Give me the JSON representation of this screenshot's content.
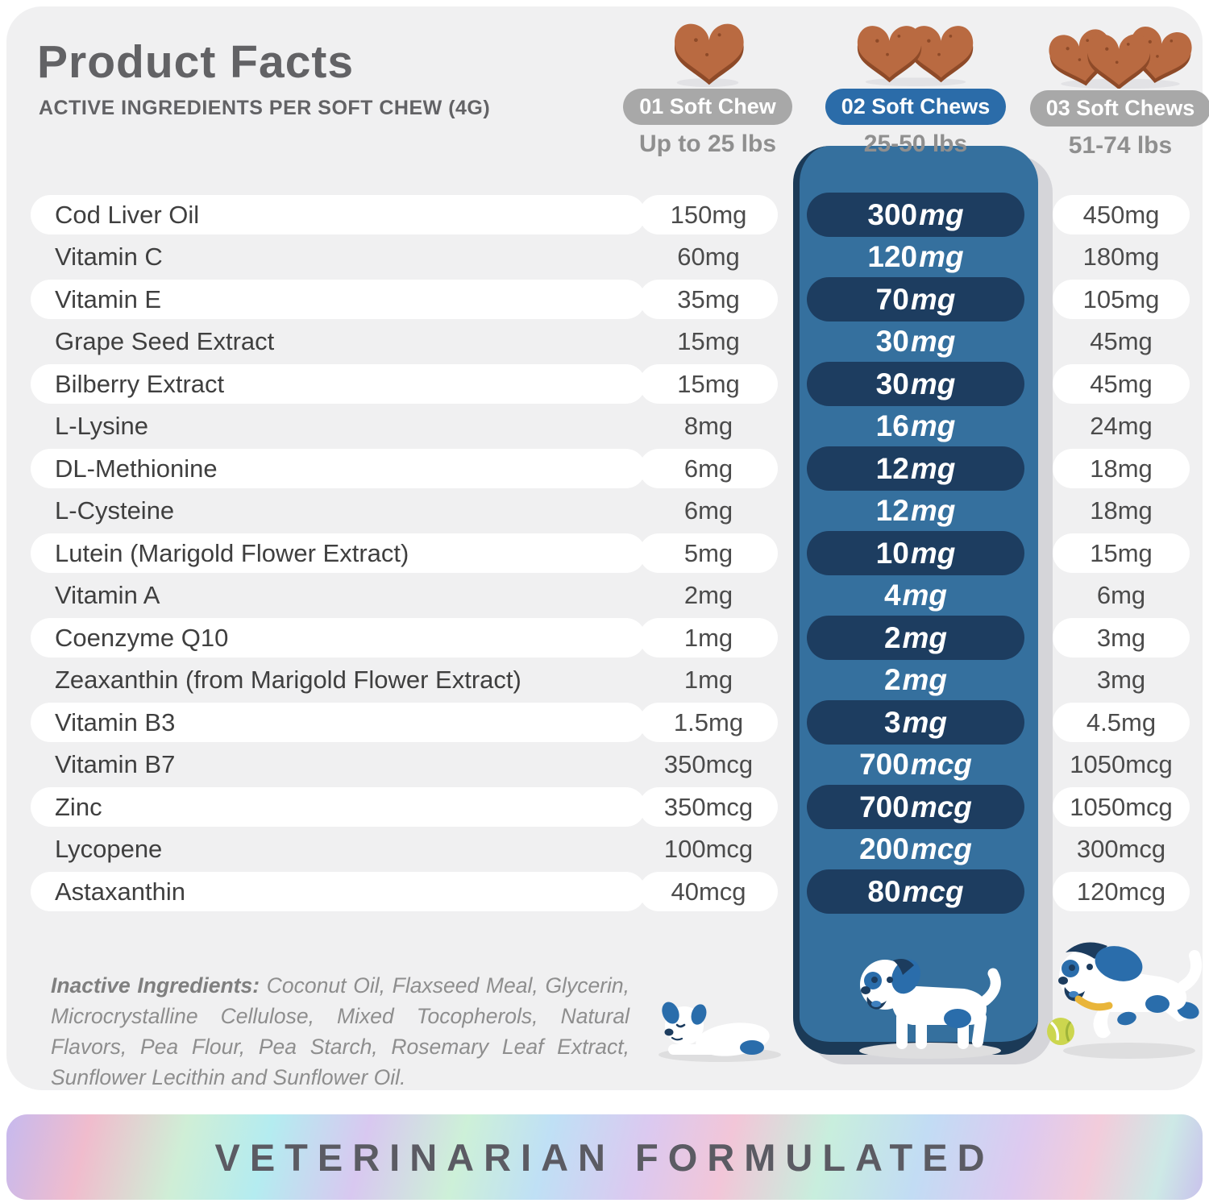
{
  "header": {
    "title": "Product Facts",
    "subtitle": "ACTIVE INGREDIENTS PER SOFT CHEW (4G)"
  },
  "dose_columns": [
    {
      "pill": "01 Soft Chew",
      "weight": "Up to 25 lbs",
      "chew_count": 1,
      "highlighted": false
    },
    {
      "pill": "02 Soft Chews",
      "weight": "25-50 lbs",
      "chew_count": 2,
      "highlighted": true
    },
    {
      "pill": "03 Soft Chews",
      "weight": "51-74 lbs",
      "chew_count": 3,
      "highlighted": false
    }
  ],
  "table": {
    "rows": [
      {
        "name": "Cod Liver Oil",
        "dose_1": "150mg",
        "dose_2_value": "300",
        "dose_2_unit": "mg",
        "dose_3": "450mg"
      },
      {
        "name": "Vitamin C",
        "dose_1": "60mg",
        "dose_2_value": "120",
        "dose_2_unit": "mg",
        "dose_3": "180mg"
      },
      {
        "name": "Vitamin E",
        "dose_1": "35mg",
        "dose_2_value": "70",
        "dose_2_unit": "mg",
        "dose_3": "105mg"
      },
      {
        "name": "Grape Seed Extract",
        "dose_1": "15mg",
        "dose_2_value": "30",
        "dose_2_unit": "mg",
        "dose_3": "45mg"
      },
      {
        "name": "Bilberry Extract",
        "dose_1": "15mg",
        "dose_2_value": "30",
        "dose_2_unit": "mg",
        "dose_3": "45mg"
      },
      {
        "name": "L-Lysine",
        "dose_1": "8mg",
        "dose_2_value": "16",
        "dose_2_unit": "mg",
        "dose_3": "24mg"
      },
      {
        "name": "DL-Methionine",
        "dose_1": "6mg",
        "dose_2_value": "12",
        "dose_2_unit": "mg",
        "dose_3": "18mg"
      },
      {
        "name": "L-Cysteine",
        "dose_1": "6mg",
        "dose_2_value": "12",
        "dose_2_unit": "mg",
        "dose_3": "18mg"
      },
      {
        "name": "Lutein (Marigold Flower Extract)",
        "dose_1": "5mg",
        "dose_2_value": "10",
        "dose_2_unit": "mg",
        "dose_3": "15mg"
      },
      {
        "name": "Vitamin A",
        "dose_1": "2mg",
        "dose_2_value": "4",
        "dose_2_unit": "mg",
        "dose_3": "6mg"
      },
      {
        "name": "Coenzyme Q10",
        "dose_1": "1mg",
        "dose_2_value": "2",
        "dose_2_unit": "mg",
        "dose_3": "3mg"
      },
      {
        "name": "Zeaxanthin (from Marigold Flower Extract)",
        "dose_1": "1mg",
        "dose_2_value": "2",
        "dose_2_unit": "mg",
        "dose_3": "3mg"
      },
      {
        "name": "Vitamin B3",
        "dose_1": "1.5mg",
        "dose_2_value": "3",
        "dose_2_unit": "mg",
        "dose_3": "4.5mg"
      },
      {
        "name": "Vitamin B7",
        "dose_1": "350mcg",
        "dose_2_value": "700",
        "dose_2_unit": "mcg",
        "dose_3": "1050mcg"
      },
      {
        "name": "Zinc",
        "dose_1": "350mcg",
        "dose_2_value": "700",
        "dose_2_unit": "mcg",
        "dose_3": "1050mcg"
      },
      {
        "name": "Lycopene",
        "dose_1": "100mcg",
        "dose_2_value": "200",
        "dose_2_unit": "mcg",
        "dose_3": "300mcg"
      },
      {
        "name": "Astaxanthin",
        "dose_1": "40mcg",
        "dose_2_value": "80",
        "dose_2_unit": "mcg",
        "dose_3": "120mcg"
      }
    ]
  },
  "inactive": {
    "label": "Inactive Ingredients:",
    "text": " Coconut Oil, Flaxseed Meal, Glycerin, Microcrystalline Cellulose, Mixed Tocopherols, Natural Flavors, Pea Flour, Pea Starch, Rosemary Leaf Extract, Sunflower Lecithin and Sunflower Oil."
  },
  "footer": {
    "banner_text": "VETERINARIAN FORMULATED"
  },
  "icons": {
    "dose_icon": "soft-chew-heart-icon",
    "mascots": [
      "puppy-lying-illustration",
      "puppy-walking-illustration",
      "dog-running-with-ball-illustration"
    ]
  },
  "colors": {
    "card_bg": "#f0f0f1",
    "accent_blue": "#2b6ca9",
    "panel_blue": "#35709e",
    "panel_edge_navy": "#1b3a57",
    "dose_pill_navy": "#1d3d60",
    "gray_pill": "#a8a8a8",
    "chew_brown": "#b96a41",
    "chew_brown_dark": "#8e4a28",
    "text_dark": "#3f3f3f",
    "text_gray": "#8e8e8e"
  }
}
